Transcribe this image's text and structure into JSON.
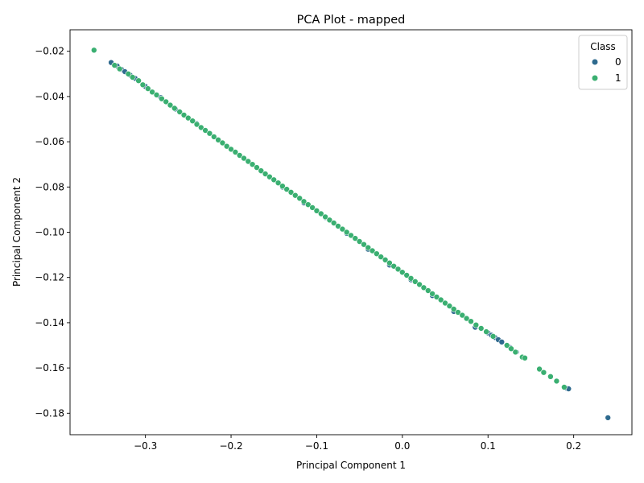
{
  "chart_data": {
    "type": "scatter",
    "title": "PCA Plot - mapped",
    "xlabel": "Principal Component 1",
    "ylabel": "Principal Component 2",
    "xlim": [
      -0.388,
      0.268
    ],
    "ylim": [
      -0.1895,
      -0.0105
    ],
    "xticks": [
      -0.3,
      -0.2,
      -0.1,
      0.0,
      0.1,
      0.2
    ],
    "xtick_labels": [
      "−0.3",
      "−0.2",
      "−0.1",
      "0.0",
      "0.1",
      "0.2"
    ],
    "yticks": [
      -0.02,
      -0.04,
      -0.06,
      -0.08,
      -0.1,
      -0.12,
      -0.14,
      -0.16,
      -0.18
    ],
    "ytick_labels": [
      "−0.02",
      "−0.04",
      "−0.06",
      "−0.08",
      "−0.10",
      "−0.12",
      "−0.14",
      "−0.16",
      "−0.18"
    ],
    "grid": false,
    "legend": {
      "title": "Class",
      "placement": "top-right"
    },
    "series": [
      {
        "name": "0",
        "color": "#2e6a8e",
        "points": [
          [
            -0.34,
            -0.025
          ],
          [
            -0.333,
            -0.0265
          ],
          [
            -0.328,
            -0.028
          ],
          [
            -0.324,
            -0.029
          ],
          [
            -0.318,
            -0.0305
          ],
          [
            -0.312,
            -0.032
          ],
          [
            -0.3,
            -0.0355
          ],
          [
            -0.282,
            -0.0405
          ],
          [
            -0.265,
            -0.0455
          ],
          [
            -0.24,
            -0.052
          ],
          [
            -0.215,
            -0.059
          ],
          [
            -0.19,
            -0.066
          ],
          [
            -0.165,
            -0.073
          ],
          [
            -0.14,
            -0.08
          ],
          [
            -0.115,
            -0.087
          ],
          [
            -0.09,
            -0.0935
          ],
          [
            -0.065,
            -0.1005
          ],
          [
            -0.04,
            -0.1075
          ],
          [
            -0.015,
            -0.1145
          ],
          [
            0.01,
            -0.121
          ],
          [
            0.035,
            -0.128
          ],
          [
            0.06,
            -0.135
          ],
          [
            0.085,
            -0.142
          ],
          [
            0.1,
            -0.1445
          ],
          [
            0.104,
            -0.1455
          ],
          [
            0.108,
            -0.1465
          ],
          [
            0.112,
            -0.1475
          ],
          [
            0.116,
            -0.1485
          ],
          [
            0.126,
            -0.151
          ],
          [
            0.133,
            -0.153
          ],
          [
            0.192,
            -0.169
          ],
          [
            0.194,
            -0.1692
          ],
          [
            0.24,
            -0.182
          ]
        ]
      },
      {
        "name": "1",
        "color": "#3aaf71",
        "points": [
          [
            -0.36,
            -0.0195
          ],
          [
            -0.336,
            -0.0262
          ],
          [
            -0.33,
            -0.0278
          ],
          [
            -0.32,
            -0.03
          ],
          [
            -0.315,
            -0.0315
          ],
          [
            -0.308,
            -0.033
          ],
          [
            -0.303,
            -0.0348
          ],
          [
            -0.297,
            -0.0365
          ],
          [
            -0.292,
            -0.038
          ],
          [
            -0.287,
            -0.0393
          ],
          [
            -0.281,
            -0.041
          ],
          [
            -0.276,
            -0.0423
          ],
          [
            -0.271,
            -0.0438
          ],
          [
            -0.266,
            -0.0452
          ],
          [
            -0.26,
            -0.0468
          ],
          [
            -0.255,
            -0.0482
          ],
          [
            -0.25,
            -0.0495
          ],
          [
            -0.245,
            -0.0508
          ],
          [
            -0.24,
            -0.0523
          ],
          [
            -0.235,
            -0.0537
          ],
          [
            -0.23,
            -0.055
          ],
          [
            -0.225,
            -0.0563
          ],
          [
            -0.22,
            -0.0578
          ],
          [
            -0.215,
            -0.0592
          ],
          [
            -0.21,
            -0.0605
          ],
          [
            -0.205,
            -0.062
          ],
          [
            -0.2,
            -0.0633
          ],
          [
            -0.195,
            -0.0646
          ],
          [
            -0.19,
            -0.066
          ],
          [
            -0.185,
            -0.0673
          ],
          [
            -0.18,
            -0.0687
          ],
          [
            -0.175,
            -0.07
          ],
          [
            -0.17,
            -0.0714
          ],
          [
            -0.165,
            -0.0728
          ],
          [
            -0.16,
            -0.0742
          ],
          [
            -0.155,
            -0.0755
          ],
          [
            -0.15,
            -0.0768
          ],
          [
            -0.145,
            -0.0782
          ],
          [
            -0.14,
            -0.0796
          ],
          [
            -0.135,
            -0.081
          ],
          [
            -0.13,
            -0.0823
          ],
          [
            -0.125,
            -0.0837
          ],
          [
            -0.12,
            -0.085
          ],
          [
            -0.115,
            -0.0864
          ],
          [
            -0.11,
            -0.0878
          ],
          [
            -0.105,
            -0.0891
          ],
          [
            -0.1,
            -0.0905
          ],
          [
            -0.095,
            -0.0918
          ],
          [
            -0.09,
            -0.0932
          ],
          [
            -0.085,
            -0.0946
          ],
          [
            -0.08,
            -0.0959
          ],
          [
            -0.075,
            -0.0973
          ],
          [
            -0.07,
            -0.0986
          ],
          [
            -0.065,
            -0.1
          ],
          [
            -0.06,
            -0.1014
          ],
          [
            -0.055,
            -0.1027
          ],
          [
            -0.05,
            -0.1041
          ],
          [
            -0.045,
            -0.1054
          ],
          [
            -0.04,
            -0.1068
          ],
          [
            -0.035,
            -0.1082
          ],
          [
            -0.03,
            -0.1095
          ],
          [
            -0.025,
            -0.1109
          ],
          [
            -0.02,
            -0.1122
          ],
          [
            -0.015,
            -0.1136
          ],
          [
            -0.01,
            -0.115
          ],
          [
            -0.005,
            -0.1163
          ],
          [
            0.0,
            -0.1177
          ],
          [
            0.005,
            -0.119
          ],
          [
            0.01,
            -0.1204
          ],
          [
            0.015,
            -0.1218
          ],
          [
            0.02,
            -0.1231
          ],
          [
            0.025,
            -0.1245
          ],
          [
            0.03,
            -0.1258
          ],
          [
            0.035,
            -0.1272
          ],
          [
            0.04,
            -0.1286
          ],
          [
            0.045,
            -0.1299
          ],
          [
            0.05,
            -0.1313
          ],
          [
            0.055,
            -0.1326
          ],
          [
            0.06,
            -0.134
          ],
          [
            0.065,
            -0.1354
          ],
          [
            0.07,
            -0.1367
          ],
          [
            0.075,
            -0.1381
          ],
          [
            0.08,
            -0.1394
          ],
          [
            0.086,
            -0.141
          ],
          [
            0.092,
            -0.1425
          ],
          [
            0.098,
            -0.144
          ],
          [
            0.106,
            -0.146
          ],
          [
            0.122,
            -0.15
          ],
          [
            0.127,
            -0.1515
          ],
          [
            0.132,
            -0.153
          ],
          [
            0.14,
            -0.1552
          ],
          [
            0.143,
            -0.1556
          ],
          [
            0.16,
            -0.1605
          ],
          [
            0.165,
            -0.162
          ],
          [
            0.173,
            -0.1638
          ],
          [
            0.18,
            -0.1658
          ],
          [
            0.189,
            -0.1685
          ]
        ]
      }
    ]
  }
}
